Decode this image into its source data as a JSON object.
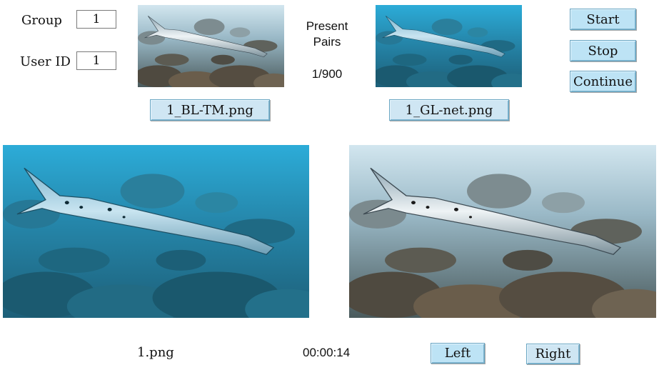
{
  "controls": {
    "group_label": "Group",
    "group_value": "1",
    "user_label": "User ID",
    "user_value": "1"
  },
  "center": {
    "present_label_line1": "Present",
    "present_label_line2": "Pairs",
    "pair_counter": "1/900"
  },
  "buttons": {
    "start": "Start",
    "stop": "Stop",
    "continue": "Continue",
    "left": "Left",
    "right": "Right"
  },
  "thumbnails": {
    "left_filename": "1_BL-TM.png",
    "right_filename": "1_GL-net.png"
  },
  "footer": {
    "image_name": "1.png",
    "timer": "00:00:14"
  },
  "icons": {
    "thumb_left": "barracuda-underwater-photo",
    "thumb_right": "barracuda-underwater-photo",
    "image_left": "barracuda-underwater-photo",
    "image_right": "barracuda-underwater-photo"
  },
  "colors": {
    "button_fill": "#bde3f5",
    "left_water_top": "#2aa8d6",
    "right_water_top": "#cfe3ec"
  }
}
